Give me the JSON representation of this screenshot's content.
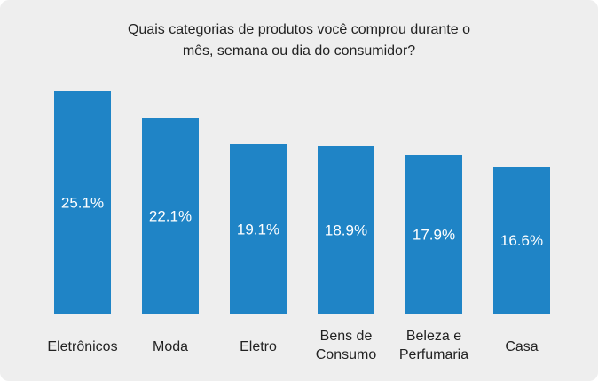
{
  "chart_data": {
    "type": "bar",
    "title_lines": [
      "Quais categorias de produtos você comprou  durante o",
      "mês, semana ou dia do consumidor?"
    ],
    "categories": [
      [
        "Eletrônicos"
      ],
      [
        "Moda"
      ],
      [
        "Eletro"
      ],
      [
        "Bens de",
        "Consumo"
      ],
      [
        "Beleza e",
        "Perfumaria"
      ],
      [
        "Casa"
      ]
    ],
    "values": [
      25.1,
      22.1,
      19.1,
      18.9,
      17.9,
      16.6
    ],
    "value_labels": [
      "25.1%",
      "22.1%",
      "19.1%",
      "18.9%",
      "17.9%",
      "16.6%"
    ],
    "unit": "%",
    "ylim": [
      0,
      25.1
    ],
    "grid": false,
    "legend": "none",
    "bar_color": "#1f84c6",
    "label_color": "#ffffff",
    "text_color": "#222222",
    "background": "#eeeeee"
  }
}
